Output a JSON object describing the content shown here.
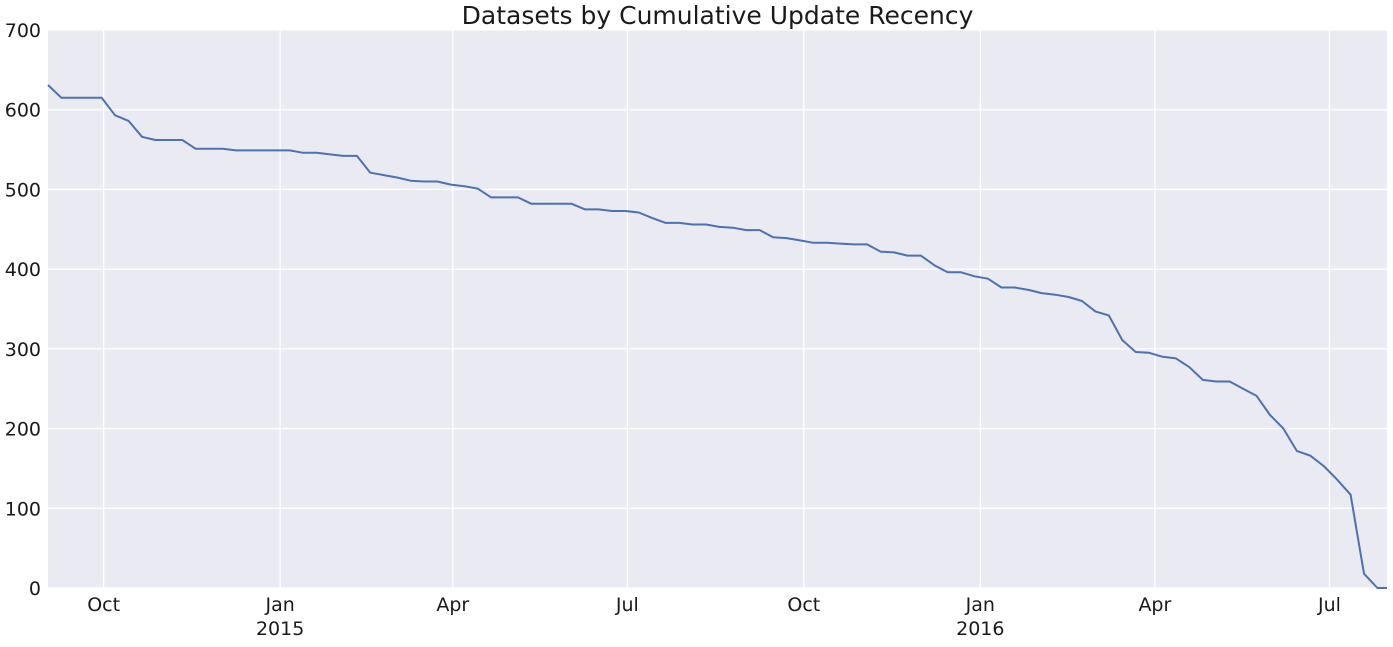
{
  "chart_data": {
    "type": "line",
    "title": "Datasets by Cumulative Update Recency",
    "xlabel": "",
    "ylabel": "",
    "ylim": [
      0,
      700
    ],
    "yticks": [
      0,
      100,
      200,
      300,
      400,
      500,
      600,
      700
    ],
    "xlim": [
      "2014-09-02",
      "2016-07-31"
    ],
    "xticks": [
      {
        "date": "2014-10-01",
        "label": "Oct",
        "sublabel": ""
      },
      {
        "date": "2015-01-01",
        "label": "Jan",
        "sublabel": "2015"
      },
      {
        "date": "2015-04-01",
        "label": "Apr",
        "sublabel": ""
      },
      {
        "date": "2015-07-01",
        "label": "Jul",
        "sublabel": ""
      },
      {
        "date": "2015-10-01",
        "label": "Oct",
        "sublabel": ""
      },
      {
        "date": "2016-01-01",
        "label": "Jan",
        "sublabel": "2016"
      },
      {
        "date": "2016-04-01",
        "label": "Apr",
        "sublabel": ""
      },
      {
        "date": "2016-07-01",
        "label": "Jul",
        "sublabel": ""
      }
    ],
    "grid": true,
    "colors": {
      "background": "#EAEAF2",
      "grid": "#FFFFFF",
      "line": "#4C72B0"
    },
    "series": [
      {
        "name": "Datasets",
        "x": [
          "2014-09-02",
          "2014-09-09",
          "2014-09-16",
          "2014-09-23",
          "2014-09-30",
          "2014-10-07",
          "2014-10-14",
          "2014-10-21",
          "2014-10-28",
          "2014-11-04",
          "2014-11-11",
          "2014-11-18",
          "2014-11-25",
          "2014-12-02",
          "2014-12-09",
          "2014-12-16",
          "2014-12-23",
          "2014-12-30",
          "2015-01-06",
          "2015-01-13",
          "2015-01-20",
          "2015-01-27",
          "2015-02-03",
          "2015-02-10",
          "2015-02-17",
          "2015-02-24",
          "2015-03-03",
          "2015-03-10",
          "2015-03-17",
          "2015-03-24",
          "2015-03-31",
          "2015-04-07",
          "2015-04-14",
          "2015-04-21",
          "2015-04-28",
          "2015-05-05",
          "2015-05-12",
          "2015-05-19",
          "2015-05-26",
          "2015-06-02",
          "2015-06-09",
          "2015-06-16",
          "2015-06-23",
          "2015-06-30",
          "2015-07-07",
          "2015-07-14",
          "2015-07-21",
          "2015-07-28",
          "2015-08-04",
          "2015-08-11",
          "2015-08-18",
          "2015-08-25",
          "2015-09-01",
          "2015-09-08",
          "2015-09-15",
          "2015-09-22",
          "2015-09-29",
          "2015-10-06",
          "2015-10-13",
          "2015-10-20",
          "2015-10-27",
          "2015-11-03",
          "2015-11-10",
          "2015-11-17",
          "2015-11-24",
          "2015-12-01",
          "2015-12-08",
          "2015-12-15",
          "2015-12-22",
          "2015-12-29",
          "2016-01-05",
          "2016-01-12",
          "2016-01-19",
          "2016-01-26",
          "2016-02-02",
          "2016-02-09",
          "2016-02-16",
          "2016-02-23",
          "2016-03-01",
          "2016-03-08",
          "2016-03-15",
          "2016-03-22",
          "2016-03-29",
          "2016-04-05",
          "2016-04-12",
          "2016-04-19",
          "2016-04-26",
          "2016-05-03",
          "2016-05-10",
          "2016-05-17",
          "2016-05-24",
          "2016-05-31",
          "2016-06-07",
          "2016-06-14",
          "2016-06-21",
          "2016-06-28",
          "2016-07-05",
          "2016-07-12",
          "2016-07-19",
          "2016-07-26",
          "2016-07-31"
        ],
        "values": [
          631,
          615,
          615,
          615,
          615,
          593,
          586,
          566,
          562,
          562,
          562,
          551,
          551,
          551,
          549,
          549,
          549,
          549,
          549,
          546,
          546,
          544,
          542,
          542,
          521,
          518,
          515,
          511,
          510,
          510,
          506,
          504,
          501,
          490,
          490,
          490,
          482,
          482,
          482,
          482,
          475,
          475,
          473,
          473,
          471,
          464,
          458,
          458,
          456,
          456,
          453,
          452,
          449,
          449,
          440,
          439,
          436,
          433,
          433,
          432,
          431,
          431,
          422,
          421,
          417,
          417,
          405,
          396,
          396,
          391,
          388,
          377,
          377,
          374,
          370,
          368,
          365,
          360,
          347,
          342,
          311,
          296,
          295,
          290,
          288,
          277,
          261,
          259,
          259,
          250,
          241,
          217,
          200,
          172,
          166,
          153,
          136,
          117,
          18,
          0,
          0
        ]
      }
    ]
  }
}
